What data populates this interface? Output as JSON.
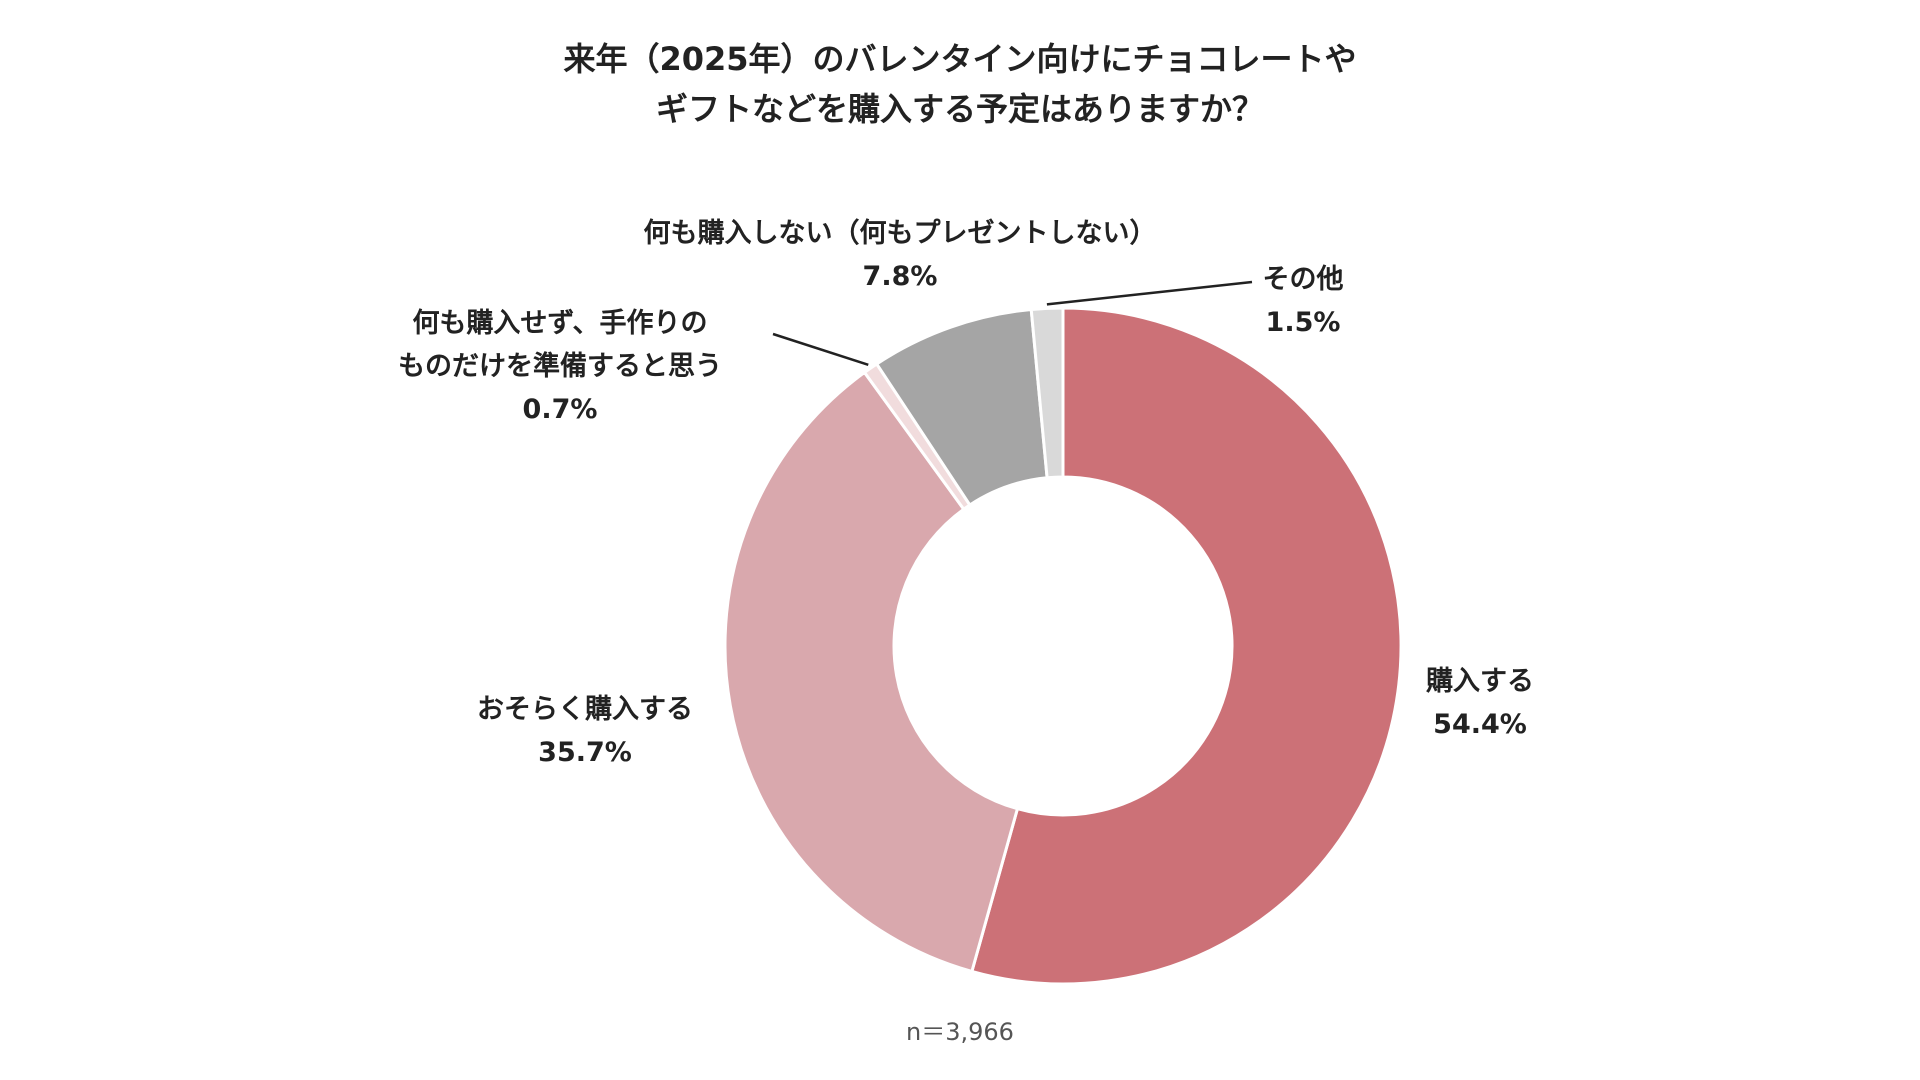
{
  "chart_data": {
    "type": "pie",
    "style": "donut",
    "title_lines": [
      "来年（2025年）のバレンタイン向けにチョコレートや",
      "ギフトなどを購入する予定はありますか？"
    ],
    "slices": [
      {
        "label_lines": [
          "購入する"
        ],
        "value": 54.4,
        "value_label": "54.4%",
        "color": "#cc7177"
      },
      {
        "label_lines": [
          "おそらく購入する"
        ],
        "value": 35.7,
        "value_label": "35.7%",
        "color": "#d9a8ad"
      },
      {
        "label_lines": [
          "何も購入せず、手作りの",
          "ものだけを準備すると思う"
        ],
        "value": 0.7,
        "value_label": "0.7%",
        "color": "#f1dcdd"
      },
      {
        "label_lines": [
          "何も購入しない（何もプレゼントしない）"
        ],
        "value": 7.8,
        "value_label": "7.8%",
        "color": "#a5a5a5"
      },
      {
        "label_lines": [
          "その他"
        ],
        "value": 1.5,
        "value_label": "1.5%",
        "color": "#d9d9d9"
      }
    ],
    "start": "12 o'clock",
    "direction": "clockwise",
    "note": "n＝3,966"
  }
}
